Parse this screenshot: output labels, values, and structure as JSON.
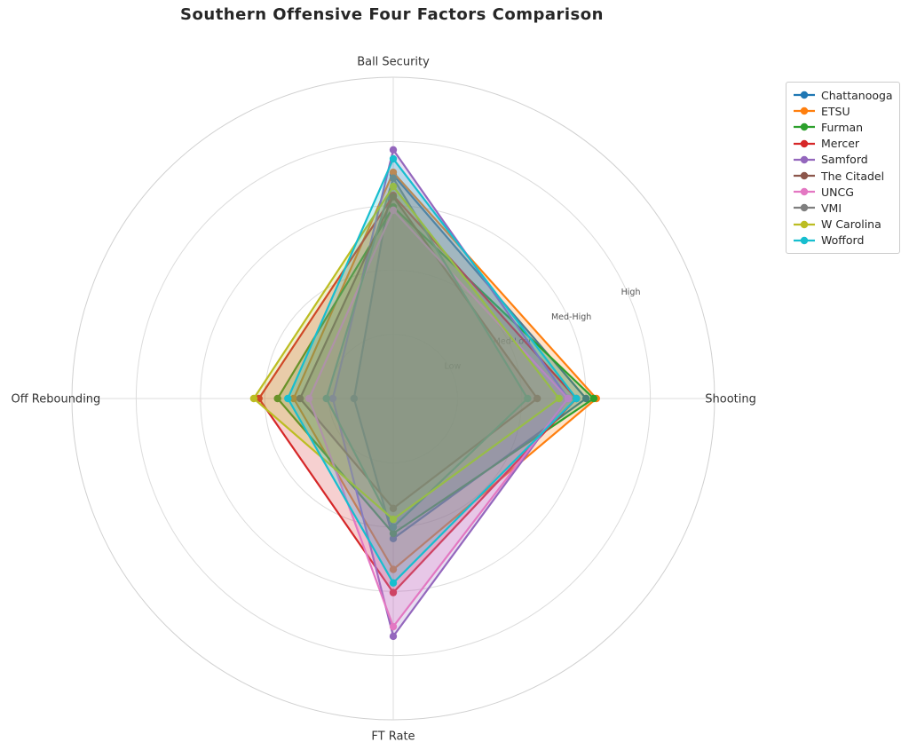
{
  "title": "Southern Offensive Four Factors Comparison",
  "colors": {
    "background": "#ffffff",
    "grid": "#dcdcdc",
    "outer_spine": "#d0d0d0",
    "title": "#262626",
    "axis_label": "#333333",
    "tick_label": "#555555",
    "legend_border": "#cccccc",
    "legend_text": "#262626"
  },
  "chart_data": {
    "type": "radar",
    "title": "Southern Offensive Four Factors Comparison",
    "axes": [
      "Ball Security",
      "Shooting",
      "FT Rate",
      "Off Rebounding"
    ],
    "axis_angles_deg": [
      90,
      0,
      270,
      180
    ],
    "r_min": 0,
    "r_max": 5,
    "grid_circle_values": [
      1,
      2,
      3,
      4,
      5
    ],
    "radial_ticks": [
      {
        "label": "Low",
        "value": 1
      },
      {
        "label": "Med-Low",
        "value": 2
      },
      {
        "label": "Med-High",
        "value": 3
      },
      {
        "label": "High",
        "value": 4
      }
    ],
    "radial_tick_angle_deg": 22.5,
    "legend_position": "upper right",
    "grid": true,
    "series": [
      {
        "name": "Chattanooga",
        "color": "#1f77b4",
        "values": [
          3.48,
          3.0,
          2.18,
          0.61
        ]
      },
      {
        "name": "ETSU",
        "color": "#ff7f0e",
        "values": [
          3.52,
          3.16,
          2.66,
          1.55
        ]
      },
      {
        "name": "Furman",
        "color": "#2ca02c",
        "values": [
          2.98,
          3.12,
          2.1,
          1.8
        ]
      },
      {
        "name": "Mercer",
        "color": "#d62728",
        "values": [
          3.16,
          2.85,
          3.02,
          2.09
        ]
      },
      {
        "name": "Samford",
        "color": "#9467bd",
        "values": [
          3.87,
          2.72,
          3.7,
          0.94
        ]
      },
      {
        "name": "The Citadel",
        "color": "#8c564b",
        "values": [
          3.14,
          2.24,
          1.71,
          1.45
        ]
      },
      {
        "name": "UNCG",
        "color": "#e377c2",
        "values": [
          2.93,
          2.72,
          3.55,
          1.31
        ]
      },
      {
        "name": "VMI",
        "color": "#7f7f7f",
        "values": [
          3.43,
          2.09,
          2.0,
          1.04
        ]
      },
      {
        "name": "W Carolina",
        "color": "#bcbd22",
        "values": [
          3.3,
          2.58,
          1.88,
          2.17
        ]
      },
      {
        "name": "Wofford",
        "color": "#17becf",
        "values": [
          3.73,
          2.85,
          2.87,
          1.64
        ]
      }
    ],
    "fill_alpha": 0.22
  }
}
